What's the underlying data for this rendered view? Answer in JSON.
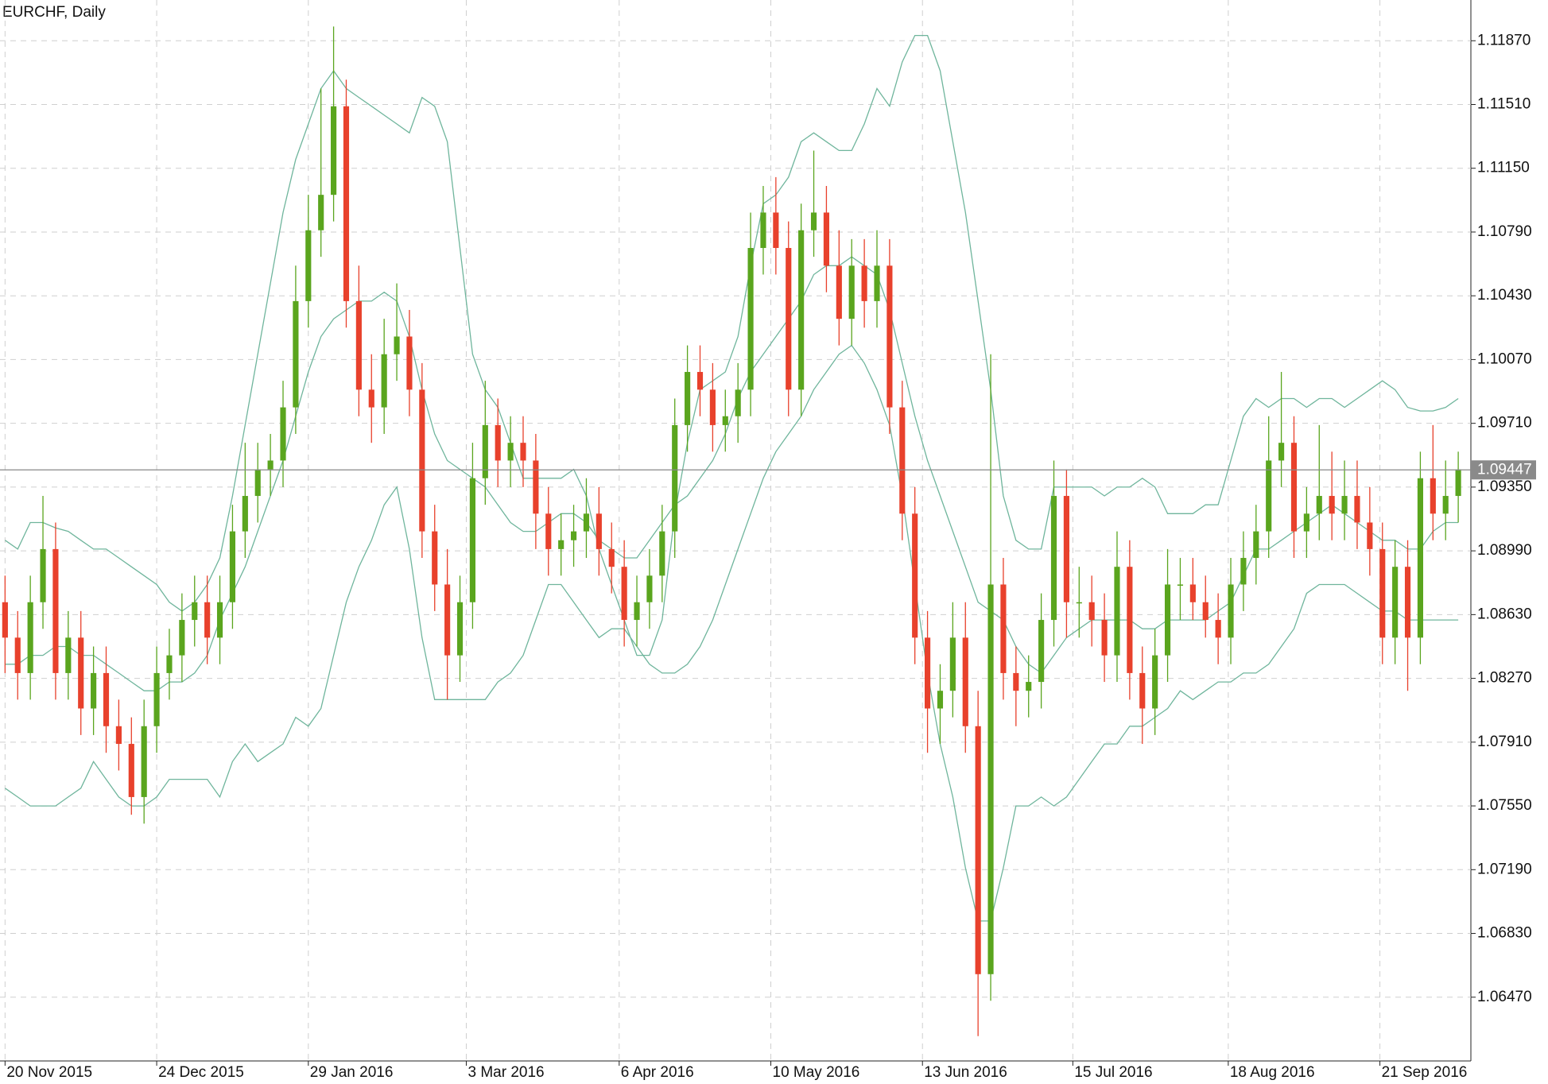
{
  "chart_data": {
    "type": "candlestick",
    "title": "EURCHF, Daily",
    "bull_color": "#5aa51e",
    "bear_color": "#e8412c",
    "band_color": "#6fb59c",
    "grid": true,
    "ylim": [
      1.0611,
      1.121
    ],
    "xlim": [
      -0.4,
      116
    ],
    "yticks": [
      {
        "value": 1.0647,
        "label": "1.06470"
      },
      {
        "value": 1.0683,
        "label": "1.06830"
      },
      {
        "value": 1.0719,
        "label": "1.07190"
      },
      {
        "value": 1.0755,
        "label": "1.07550"
      },
      {
        "value": 1.0791,
        "label": "1.07910"
      },
      {
        "value": 1.0827,
        "label": "1.08270"
      },
      {
        "value": 1.0863,
        "label": "1.08630"
      },
      {
        "value": 1.0899,
        "label": "1.08990"
      },
      {
        "value": 1.0935,
        "label": "1.09350"
      },
      {
        "value": 1.0971,
        "label": "1.09710"
      },
      {
        "value": 1.1007,
        "label": "1.10070"
      },
      {
        "value": 1.1043,
        "label": "1.10430"
      },
      {
        "value": 1.1079,
        "label": "1.10790"
      },
      {
        "value": 1.1115,
        "label": "1.11150"
      },
      {
        "value": 1.1151,
        "label": "1.11510"
      },
      {
        "value": 1.1187,
        "label": "1.11870"
      }
    ],
    "xticks": [
      {
        "value": 0,
        "label": "20 Nov 2015"
      },
      {
        "value": 12,
        "label": "24 Dec 2015"
      },
      {
        "value": 24,
        "label": "29 Jan 2016"
      },
      {
        "value": 36.5,
        "label": "3 Mar 2016"
      },
      {
        "value": 48.6,
        "label": "6 Apr 2016"
      },
      {
        "value": 60.6,
        "label": "10 May 2016"
      },
      {
        "value": 72.6,
        "label": "13 Jun 2016"
      },
      {
        "value": 84.5,
        "label": "15 Jul 2016"
      },
      {
        "value": 96.8,
        "label": "18 Aug 2016"
      },
      {
        "value": 108.8,
        "label": "21 Sep 2016"
      }
    ],
    "current_price": {
      "value": 1.09447,
      "label": "1.09447"
    },
    "open": [
      1.087,
      1.085,
      1.083,
      1.087,
      1.09,
      1.083,
      1.085,
      1.081,
      1.083,
      1.08,
      1.079,
      1.076,
      1.08,
      1.083,
      1.084,
      1.086,
      1.087,
      1.085,
      1.087,
      1.091,
      1.093,
      1.0945,
      1.095,
      1.098,
      1.104,
      1.108,
      1.11,
      1.115,
      1.104,
      1.099,
      1.098,
      1.101,
      1.102,
      1.099,
      1.091,
      1.088,
      1.084,
      1.087,
      1.094,
      1.097,
      1.095,
      1.096,
      1.095,
      1.092,
      1.09,
      1.0905,
      1.091,
      1.092,
      1.09,
      1.089,
      1.086,
      1.087,
      1.0885,
      1.091,
      1.097,
      1.1,
      1.099,
      1.097,
      1.0975,
      1.099,
      1.107,
      1.109,
      1.107,
      1.099,
      1.108,
      1.109,
      1.106,
      1.103,
      1.106,
      1.104,
      1.106,
      1.098,
      1.092,
      1.085,
      1.081,
      1.082,
      1.085,
      1.08,
      1.066,
      1.088,
      1.083,
      1.082,
      1.0825,
      1.086,
      1.093,
      1.087,
      1.087,
      1.086,
      1.084,
      1.089,
      1.083,
      1.081,
      1.084,
      1.088,
      1.088,
      1.087,
      1.086,
      1.085,
      1.088,
      1.0895,
      1.091,
      1.095,
      1.096,
      1.091,
      1.092,
      1.093,
      1.092,
      1.093,
      1.0915,
      1.09,
      1.085,
      1.089,
      1.085,
      1.094,
      1.092,
      1.093
    ],
    "high": [
      1.0885,
      1.0865,
      1.0885,
      1.093,
      1.0915,
      1.0865,
      1.0865,
      1.0845,
      1.0845,
      1.0815,
      1.0805,
      1.0815,
      1.0845,
      1.0855,
      1.0875,
      1.0885,
      1.0885,
      1.0885,
      1.0925,
      1.096,
      1.096,
      1.0965,
      1.0995,
      1.106,
      1.11,
      1.116,
      1.1195,
      1.1165,
      1.106,
      1.101,
      1.103,
      1.105,
      1.1035,
      1.1005,
      1.0925,
      1.09,
      1.0885,
      1.096,
      1.0995,
      1.0985,
      1.0975,
      1.0975,
      1.0965,
      1.0935,
      1.092,
      1.0925,
      1.094,
      1.0935,
      1.0915,
      1.0905,
      1.0885,
      1.09,
      1.0925,
      1.0985,
      1.1015,
      1.1015,
      1.1005,
      1.099,
      1.1005,
      1.109,
      1.1105,
      1.111,
      1.1085,
      1.1095,
      1.1125,
      1.1105,
      1.108,
      1.1075,
      1.1075,
      1.108,
      1.1075,
      1.0995,
      1.0935,
      1.0865,
      1.0835,
      1.087,
      1.087,
      1.082,
      1.101,
      1.0895,
      1.0845,
      1.084,
      1.0875,
      1.095,
      1.0945,
      1.089,
      1.0885,
      1.0875,
      1.091,
      1.0905,
      1.0845,
      1.0855,
      1.09,
      1.0895,
      1.0895,
      1.0885,
      1.0875,
      1.0895,
      1.091,
      1.0925,
      1.0975,
      1.1,
      1.0975,
      1.0935,
      1.097,
      1.0955,
      1.095,
      1.095,
      1.0935,
      1.0915,
      1.0905,
      1.0905,
      1.0955,
      1.097,
      1.095,
      1.0955
    ],
    "low": [
      1.083,
      1.0815,
      1.0815,
      1.0855,
      1.0815,
      1.0815,
      1.0795,
      1.0795,
      1.0785,
      1.0775,
      1.075,
      1.0745,
      1.0785,
      1.0815,
      1.0825,
      1.0845,
      1.0835,
      1.0835,
      1.0855,
      1.0895,
      1.0915,
      1.093,
      1.0935,
      1.0965,
      1.1025,
      1.1065,
      1.1085,
      1.1025,
      1.0975,
      1.096,
      1.0965,
      1.0995,
      1.0975,
      1.0895,
      1.0865,
      1.0815,
      1.0825,
      1.0855,
      1.0925,
      1.0935,
      1.0935,
      1.0935,
      1.09,
      1.0885,
      1.0885,
      1.089,
      1.0895,
      1.0885,
      1.0875,
      1.0845,
      1.0845,
      1.0855,
      1.087,
      1.0895,
      1.0955,
      1.0975,
      1.0955,
      1.0955,
      1.096,
      1.0975,
      1.1055,
      1.1055,
      1.0975,
      1.0975,
      1.1065,
      1.1045,
      1.1015,
      1.1015,
      1.1025,
      1.1025,
      1.0965,
      1.0905,
      1.0835,
      1.0785,
      1.079,
      1.0805,
      1.0785,
      1.0625,
      1.0645,
      1.0815,
      1.08,
      1.0805,
      1.081,
      1.0845,
      1.085,
      1.085,
      1.0845,
      1.0825,
      1.0825,
      1.0815,
      1.079,
      1.0795,
      1.0825,
      1.086,
      1.086,
      1.085,
      1.0835,
      1.0835,
      1.0865,
      1.088,
      1.0895,
      1.0935,
      1.0895,
      1.0895,
      1.0905,
      1.0905,
      1.0905,
      1.09,
      1.0885,
      1.0835,
      1.0835,
      1.082,
      1.0835,
      1.0905,
      1.0905,
      1.0915
    ],
    "close": [
      1.085,
      1.083,
      1.087,
      1.09,
      1.083,
      1.085,
      1.081,
      1.083,
      1.08,
      1.079,
      1.076,
      1.08,
      1.083,
      1.084,
      1.086,
      1.087,
      1.085,
      1.087,
      1.091,
      1.093,
      1.0945,
      1.095,
      1.098,
      1.104,
      1.108,
      1.11,
      1.115,
      1.104,
      1.099,
      1.098,
      1.101,
      1.102,
      1.099,
      1.091,
      1.088,
      1.084,
      1.087,
      1.094,
      1.097,
      1.095,
      1.096,
      1.095,
      1.092,
      1.09,
      1.0905,
      1.091,
      1.092,
      1.09,
      1.089,
      1.086,
      1.087,
      1.0885,
      1.091,
      1.097,
      1.1,
      1.099,
      1.097,
      1.0975,
      1.099,
      1.107,
      1.109,
      1.107,
      1.099,
      1.108,
      1.109,
      1.106,
      1.103,
      1.106,
      1.104,
      1.106,
      1.098,
      1.092,
      1.085,
      1.081,
      1.082,
      1.085,
      1.08,
      1.066,
      1.088,
      1.083,
      1.082,
      1.0825,
      1.086,
      1.093,
      1.087,
      1.087,
      1.086,
      1.084,
      1.089,
      1.083,
      1.081,
      1.084,
      1.088,
      1.088,
      1.087,
      1.086,
      1.085,
      1.088,
      1.0895,
      1.091,
      1.095,
      1.096,
      1.091,
      1.092,
      1.093,
      1.092,
      1.093,
      1.0915,
      1.09,
      1.085,
      1.089,
      1.085,
      1.094,
      1.092,
      1.093,
      1.0945
    ],
    "upper_band": [
      1.0905,
      1.09,
      1.0915,
      1.0915,
      1.0912,
      1.091,
      1.0905,
      1.09,
      1.09,
      1.0895,
      1.089,
      1.0885,
      1.088,
      1.087,
      1.0865,
      1.087,
      1.088,
      1.0895,
      1.093,
      1.097,
      1.101,
      1.105,
      1.109,
      1.112,
      1.114,
      1.116,
      1.117,
      1.116,
      1.1155,
      1.115,
      1.1145,
      1.114,
      1.1135,
      1.1155,
      1.115,
      1.113,
      1.107,
      1.101,
      1.099,
      1.098,
      1.096,
      1.094,
      1.094,
      1.094,
      1.094,
      1.0945,
      1.093,
      1.09,
      1.088,
      1.086,
      1.084,
      1.084,
      1.086,
      1.092,
      1.096,
      1.099,
      1.0995,
      1.1,
      1.102,
      1.106,
      1.1095,
      1.11,
      1.111,
      1.113,
      1.1135,
      1.113,
      1.1125,
      1.1125,
      1.114,
      1.116,
      1.115,
      1.1175,
      1.119,
      1.119,
      1.117,
      1.113,
      1.109,
      1.104,
      1.099,
      1.093,
      1.0905,
      1.09,
      1.09,
      1.0935,
      1.0935,
      1.0935,
      1.0935,
      1.093,
      1.0935,
      1.0935,
      1.094,
      1.0935,
      1.092,
      1.092,
      1.092,
      1.0925,
      1.0925,
      1.095,
      1.0975,
      1.0985,
      1.098,
      1.0985,
      1.0985,
      1.098,
      1.0985,
      1.0985,
      1.098,
      1.0985,
      1.099,
      1.0995,
      1.099,
      1.098,
      1.0978,
      1.0978,
      1.098,
      1.0985
    ],
    "middle_band": [
      1.0835,
      1.0835,
      1.084,
      1.084,
      1.0845,
      1.0845,
      1.084,
      1.084,
      1.0835,
      1.083,
      1.0825,
      1.082,
      1.082,
      1.0825,
      1.0825,
      1.083,
      1.084,
      1.086,
      1.0875,
      1.089,
      1.091,
      1.093,
      1.095,
      1.0975,
      1.1,
      1.102,
      1.103,
      1.1035,
      1.104,
      1.104,
      1.1045,
      1.104,
      1.102,
      1.099,
      1.0965,
      1.095,
      1.0945,
      1.094,
      1.0935,
      1.0925,
      1.0915,
      1.091,
      1.091,
      1.0915,
      1.092,
      1.092,
      1.0915,
      1.0905,
      1.09,
      1.0895,
      1.0895,
      1.0905,
      1.0915,
      1.0925,
      1.093,
      1.094,
      1.095,
      1.0965,
      1.0985,
      1.1,
      1.101,
      1.102,
      1.103,
      1.104,
      1.1055,
      1.106,
      1.106,
      1.1065,
      1.106,
      1.1055,
      1.1035,
      1.1005,
      1.0975,
      1.095,
      1.093,
      1.091,
      1.089,
      1.087,
      1.0865,
      1.086,
      1.0845,
      1.0835,
      1.083,
      1.084,
      1.085,
      1.0855,
      1.086,
      1.086,
      1.086,
      1.086,
      1.0855,
      1.0855,
      1.086,
      1.086,
      1.086,
      1.086,
      1.0865,
      1.087,
      1.0885,
      1.09,
      1.09,
      1.0905,
      1.091,
      1.0915,
      1.092,
      1.0925,
      1.092,
      1.0915,
      1.091,
      1.0905,
      1.0905,
      1.09,
      1.09,
      1.091,
      1.0915,
      1.0915
    ],
    "lower_band": [
      1.0765,
      1.076,
      1.0755,
      1.0755,
      1.0755,
      1.076,
      1.0765,
      1.078,
      1.077,
      1.076,
      1.0755,
      1.0755,
      1.076,
      1.077,
      1.077,
      1.077,
      1.077,
      1.076,
      1.078,
      1.079,
      1.078,
      1.0785,
      1.079,
      1.0805,
      1.08,
      1.081,
      1.084,
      1.087,
      1.089,
      1.0905,
      1.0925,
      1.0935,
      1.09,
      1.085,
      1.0815,
      1.0815,
      1.0815,
      1.0815,
      1.0815,
      1.0825,
      1.083,
      1.084,
      1.086,
      1.088,
      1.088,
      1.087,
      1.086,
      1.085,
      1.0855,
      1.0855,
      1.0845,
      1.0835,
      1.083,
      1.083,
      1.0835,
      1.0845,
      1.086,
      1.088,
      1.09,
      1.092,
      1.094,
      1.0955,
      1.0965,
      1.0975,
      1.099,
      1.1,
      1.101,
      1.1015,
      1.1005,
      1.099,
      1.097,
      1.093,
      1.088,
      1.083,
      1.079,
      1.076,
      1.072,
      1.069,
      1.069,
      1.072,
      1.0755,
      1.0755,
      1.076,
      1.0755,
      1.076,
      1.077,
      1.078,
      1.079,
      1.079,
      1.08,
      1.08,
      1.0805,
      1.081,
      1.082,
      1.0815,
      1.082,
      1.0825,
      1.0825,
      1.083,
      1.083,
      1.0835,
      1.0845,
      1.0855,
      1.0875,
      1.088,
      1.088,
      1.088,
      1.0875,
      1.087,
      1.0865,
      1.0865,
      1.086,
      1.086,
      1.086,
      1.086,
      1.086
    ]
  }
}
